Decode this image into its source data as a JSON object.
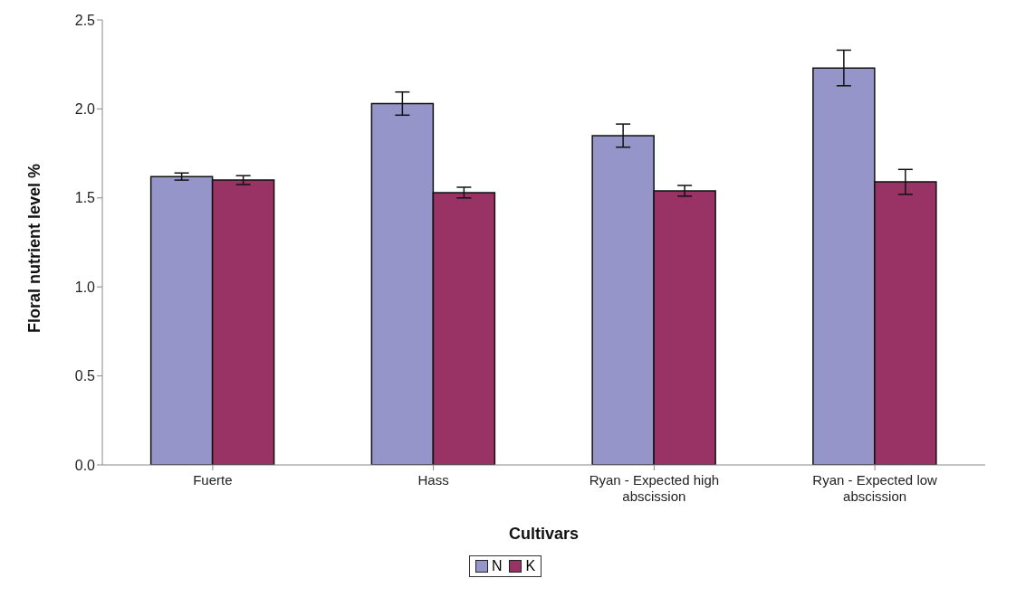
{
  "chart_data": {
    "type": "bar",
    "xlabel": "Cultivars",
    "ylabel": "Floral nutrient level %",
    "categories": [
      "Fuerte",
      "Hass",
      "Ryan - Expected high abscission",
      "Ryan - Expected low abscission"
    ],
    "series": [
      {
        "name": "N",
        "color": "#9595c9",
        "values": [
          1.62,
          2.03,
          1.85,
          2.23
        ],
        "errors": [
          0.02,
          0.065,
          0.065,
          0.1
        ]
      },
      {
        "name": "K",
        "color": "#993366",
        "values": [
          1.6,
          1.53,
          1.54,
          1.59
        ],
        "errors": [
          0.025,
          0.03,
          0.03,
          0.07
        ]
      }
    ],
    "ylim": [
      0,
      2.5
    ],
    "yticks": [
      {
        "value": 0,
        "label": "0.0"
      },
      0.5,
      {
        "value": 1,
        "label": "1.0"
      },
      1.5,
      {
        "value": 2,
        "label": "2.0"
      },
      2.5
    ],
    "grid": false,
    "legend": "bottom"
  }
}
